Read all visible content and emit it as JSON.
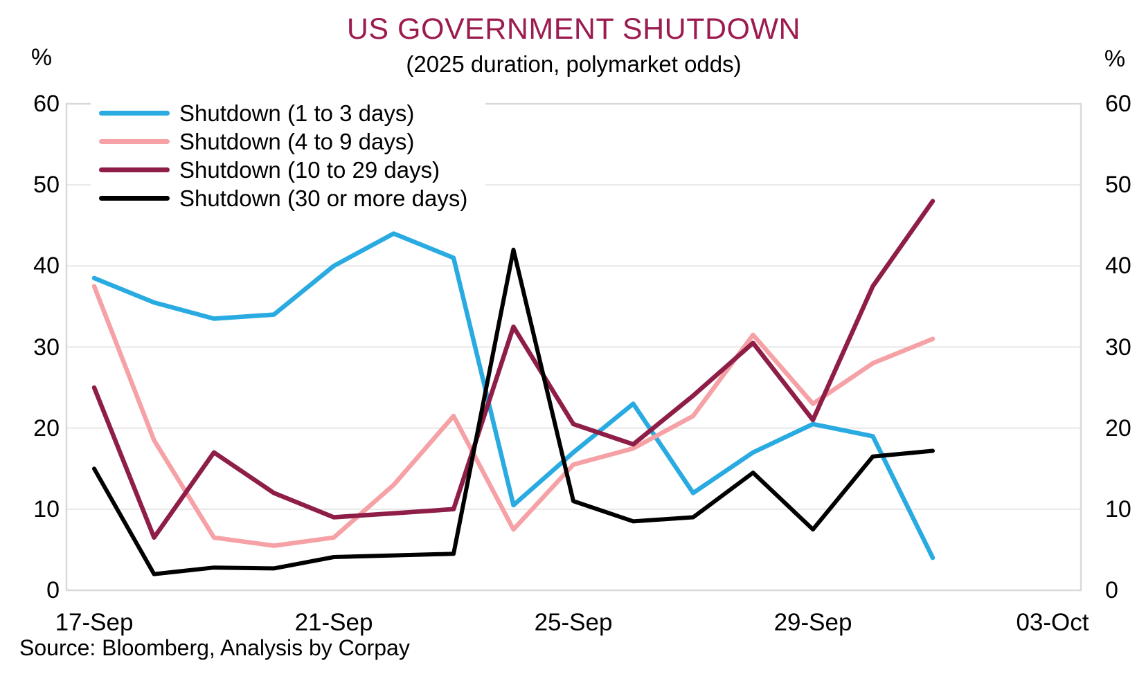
{
  "axes": {
    "left_unit": "%",
    "right_unit": "%",
    "y_ticks": [
      60,
      50,
      40,
      30,
      20,
      10,
      0
    ],
    "x_ticks": [
      {
        "label": "17-Sep",
        "day": 0
      },
      {
        "label": "21-Sep",
        "day": 4
      },
      {
        "label": "25-Sep",
        "day": 8
      },
      {
        "label": "29-Sep",
        "day": 12
      },
      {
        "label": "03-Oct",
        "day": 16
      }
    ]
  },
  "source": "Source: Bloomberg, Analysis by Corpay",
  "colors": {
    "title": "#9C1B50",
    "grid": "#E7E7E7",
    "plot_border": "#D9D9D9",
    "text": "#000000"
  },
  "chart_data": {
    "type": "line",
    "title": "US GOVERNMENT SHUTDOWN",
    "subtitle": "(2025 duration, polymarket odds)",
    "ylabel": "%",
    "ylim": [
      0,
      60
    ],
    "grid": true,
    "legend_position": "top-left",
    "x": [
      "17-Sep",
      "18-Sep",
      "19-Sep",
      "20-Sep",
      "21-Sep",
      "22-Sep",
      "23-Sep",
      "24-Sep",
      "25-Sep",
      "26-Sep",
      "27-Sep",
      "28-Sep",
      "29-Sep",
      "30-Sep",
      "01-Oct"
    ],
    "x_axis_end": "03-Oct",
    "series": [
      {
        "name": "Shutdown (1 to 3 days)",
        "color": "#29ABE2",
        "width": 6.5,
        "values": [
          38.5,
          35.5,
          33.5,
          34,
          40,
          44,
          41,
          10.5,
          17,
          23,
          12,
          17,
          20.5,
          19,
          4
        ]
      },
      {
        "name": "Shutdown (4 to 9 days)",
        "color": "#F5A1A5",
        "width": 6.5,
        "values": [
          37.5,
          18.5,
          6.5,
          5.5,
          6.5,
          13,
          21.5,
          7.5,
          15.5,
          17.5,
          21.5,
          31.5,
          23,
          28,
          31
        ]
      },
      {
        "name": "Shutdown (10 to 29 days)",
        "color": "#8E1D47",
        "width": 6.5,
        "values": [
          25,
          6.5,
          17,
          12,
          9,
          9.5,
          10,
          32.5,
          20.5,
          18,
          24,
          30.5,
          21,
          37.5,
          48
        ]
      },
      {
        "name": "Shutdown (30 or more days)",
        "color": "#000000",
        "width": 6,
        "values": [
          15,
          2,
          2.8,
          2.7,
          4.1,
          4.3,
          4.5,
          42,
          11,
          8.5,
          9,
          14.5,
          7.5,
          16.5,
          17.2
        ]
      }
    ]
  }
}
